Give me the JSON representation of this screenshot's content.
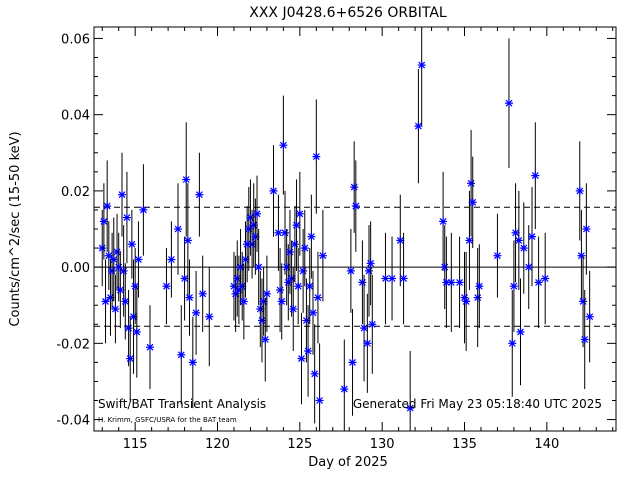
{
  "chart_data": {
    "type": "scatter",
    "title": "XXX J0428.6+6526 ORBITAL",
    "xlabel": "Day of 2025",
    "ylabel": "Counts/cm^2/sec (15-50 keV)",
    "xlim": [
      112.5,
      144.2
    ],
    "ylim": [
      -0.043,
      0.063
    ],
    "xticks": [
      115,
      120,
      125,
      130,
      135,
      140
    ],
    "yticks": [
      -0.04,
      -0.02,
      0.0,
      0.02,
      0.04,
      0.06
    ],
    "ytick_labels": [
      "-0.04",
      "-0.02",
      "0.00",
      "0.02",
      "0.04",
      "0.06"
    ],
    "reference_lines": [
      {
        "y": 0.0,
        "style": "solid"
      },
      {
        "y": 0.0157,
        "style": "dashed"
      },
      {
        "y": -0.0155,
        "style": "dashed"
      }
    ],
    "annotations": {
      "left_caption": "Swift/BAT Transient Analysis",
      "credit": "H. Krimm, GSFC/USRA for the BAT team",
      "generated": "Generated Fri May 23 05:18:40 UTC 2025"
    },
    "marker_color": "#0000ff",
    "errorbar_color": "#000000",
    "series": [
      {
        "points": [
          [
            113.0,
            0.005,
            0.01
          ],
          [
            113.1,
            0.012,
            0.01
          ],
          [
            113.2,
            -0.009,
            0.011
          ],
          [
            113.3,
            0.016,
            0.012
          ],
          [
            113.4,
            0.003,
            0.009
          ],
          [
            113.5,
            -0.008,
            0.01
          ],
          [
            113.6,
            -0.001,
            0.01
          ],
          [
            113.7,
            0.002,
            0.011
          ],
          [
            113.8,
            -0.011,
            0.009
          ],
          [
            113.9,
            0.004,
            0.01
          ],
          [
            114.0,
            0.0,
            0.009
          ],
          [
            114.1,
            -0.006,
            0.01
          ],
          [
            114.2,
            0.019,
            0.011
          ],
          [
            114.3,
            -0.001,
            0.012
          ],
          [
            114.4,
            -0.009,
            0.01
          ],
          [
            114.5,
            0.013,
            0.012
          ],
          [
            114.6,
            -0.016,
            0.01
          ],
          [
            114.7,
            -0.024,
            0.011
          ],
          [
            114.8,
            0.006,
            0.009
          ],
          [
            114.9,
            -0.013,
            0.015
          ],
          [
            115.0,
            -0.005,
            0.01
          ],
          [
            115.1,
            -0.017,
            0.012
          ],
          [
            115.2,
            0.002,
            0.01
          ],
          [
            115.5,
            0.015,
            0.012
          ],
          [
            115.9,
            -0.021,
            0.011
          ],
          [
            116.9,
            -0.005,
            0.01
          ],
          [
            117.2,
            0.002,
            0.01
          ],
          [
            117.6,
            0.01,
            0.012
          ],
          [
            117.8,
            -0.023,
            0.013
          ],
          [
            118.0,
            -0.003,
            0.011
          ],
          [
            118.1,
            0.023,
            0.015
          ],
          [
            118.2,
            0.007,
            0.015
          ],
          [
            118.3,
            -0.008,
            0.01
          ],
          [
            118.5,
            -0.025,
            0.012
          ],
          [
            118.7,
            -0.012,
            0.011
          ],
          [
            118.9,
            0.019,
            0.011
          ],
          [
            119.1,
            -0.007,
            0.01
          ],
          [
            119.5,
            -0.013,
            0.013
          ],
          [
            121.0,
            -0.005,
            0.009
          ],
          [
            121.1,
            -0.007,
            0.01
          ],
          [
            121.2,
            -0.003,
            0.01
          ],
          [
            121.3,
            -0.006,
            0.009
          ],
          [
            121.4,
            0.0,
            0.01
          ],
          [
            121.5,
            -0.005,
            0.009
          ],
          [
            121.6,
            -0.009,
            0.01
          ],
          [
            121.7,
            0.002,
            0.01
          ],
          [
            121.8,
            0.006,
            0.01
          ],
          [
            121.9,
            0.01,
            0.011
          ],
          [
            122.0,
            0.013,
            0.01
          ],
          [
            122.1,
            0.006,
            0.009
          ],
          [
            122.2,
            0.011,
            0.011
          ],
          [
            122.3,
            0.008,
            0.01
          ],
          [
            122.4,
            0.014,
            0.01
          ],
          [
            122.5,
            0.0,
            0.01
          ],
          [
            122.6,
            -0.011,
            0.01
          ],
          [
            122.7,
            -0.014,
            0.011
          ],
          [
            122.8,
            -0.009,
            0.009
          ],
          [
            122.9,
            -0.019,
            0.011
          ],
          [
            123.0,
            -0.007,
            0.01
          ],
          [
            123.4,
            0.02,
            0.012
          ],
          [
            123.7,
            0.009,
            0.01
          ],
          [
            123.8,
            -0.006,
            0.011
          ],
          [
            123.9,
            -0.009,
            0.01
          ],
          [
            124.0,
            0.032,
            0.013
          ],
          [
            124.1,
            0.009,
            0.011
          ],
          [
            124.2,
            0.0,
            0.01
          ],
          [
            124.3,
            -0.004,
            0.01
          ],
          [
            124.4,
            0.004,
            0.011
          ],
          [
            124.5,
            -0.003,
            0.01
          ],
          [
            124.6,
            -0.011,
            0.011
          ],
          [
            124.7,
            0.006,
            0.01
          ],
          [
            124.8,
            0.011,
            0.012
          ],
          [
            124.9,
            -0.005,
            0.01
          ],
          [
            125.0,
            0.014,
            0.011
          ],
          [
            125.1,
            -0.024,
            0.012
          ],
          [
            125.2,
            -0.001,
            0.011
          ],
          [
            125.3,
            0.005,
            0.01
          ],
          [
            125.4,
            -0.014,
            0.011
          ],
          [
            125.5,
            -0.022,
            0.012
          ],
          [
            125.6,
            -0.005,
            0.01
          ],
          [
            125.7,
            0.008,
            0.011
          ],
          [
            125.8,
            -0.012,
            0.011
          ],
          [
            125.9,
            -0.028,
            0.013
          ],
          [
            126.0,
            0.029,
            0.015
          ],
          [
            126.1,
            -0.008,
            0.012
          ],
          [
            126.2,
            -0.035,
            0.015
          ],
          [
            126.4,
            0.003,
            0.012
          ],
          [
            127.7,
            -0.032,
            0.013
          ],
          [
            128.1,
            -0.001,
            0.011
          ],
          [
            128.2,
            -0.025,
            0.014
          ],
          [
            128.3,
            0.021,
            0.012
          ],
          [
            128.4,
            0.016,
            0.012
          ],
          [
            128.8,
            -0.004,
            0.011
          ],
          [
            128.9,
            -0.016,
            0.014
          ],
          [
            129.1,
            -0.02,
            0.013
          ],
          [
            129.2,
            -0.001,
            0.012
          ],
          [
            129.3,
            0.001,
            0.011
          ],
          [
            129.4,
            -0.015,
            0.013
          ],
          [
            130.2,
            -0.003,
            0.012
          ],
          [
            130.6,
            -0.003,
            0.011
          ],
          [
            131.1,
            0.007,
            0.012
          ],
          [
            131.3,
            -0.003,
            0.012
          ],
          [
            131.7,
            -0.037,
            0.015
          ],
          [
            132.2,
            0.037,
            0.015
          ],
          [
            132.4,
            0.053,
            0.016
          ],
          [
            133.7,
            0.012,
            0.013
          ],
          [
            133.8,
            0.0,
            0.011
          ],
          [
            133.9,
            -0.004,
            0.012
          ],
          [
            134.2,
            -0.004,
            0.013
          ],
          [
            134.7,
            -0.004,
            0.012
          ],
          [
            135.0,
            -0.008,
            0.012
          ],
          [
            135.1,
            -0.009,
            0.013
          ],
          [
            135.3,
            0.007,
            0.013
          ],
          [
            135.4,
            0.022,
            0.014
          ],
          [
            135.5,
            0.017,
            0.012
          ],
          [
            135.8,
            -0.008,
            0.013
          ],
          [
            135.9,
            -0.005,
            0.011
          ],
          [
            137.0,
            0.003,
            0.011
          ],
          [
            137.7,
            0.043,
            0.017
          ],
          [
            137.9,
            -0.02,
            0.014
          ],
          [
            138.0,
            -0.005,
            0.012
          ],
          [
            138.1,
            0.009,
            0.013
          ],
          [
            138.3,
            0.007,
            0.013
          ],
          [
            138.4,
            -0.017,
            0.014
          ],
          [
            138.6,
            0.005,
            0.012
          ],
          [
            138.9,
            0.0,
            0.011
          ],
          [
            139.1,
            0.008,
            0.013
          ],
          [
            139.3,
            0.024,
            0.014
          ],
          [
            139.5,
            -0.004,
            0.012
          ],
          [
            139.9,
            -0.003,
            0.012
          ],
          [
            142.0,
            0.02,
            0.013
          ],
          [
            142.1,
            0.003,
            0.012
          ],
          [
            142.2,
            -0.009,
            0.012
          ],
          [
            142.3,
            -0.019,
            0.013
          ],
          [
            142.4,
            0.01,
            0.012
          ],
          [
            142.6,
            -0.013,
            0.012
          ]
        ]
      }
    ]
  }
}
